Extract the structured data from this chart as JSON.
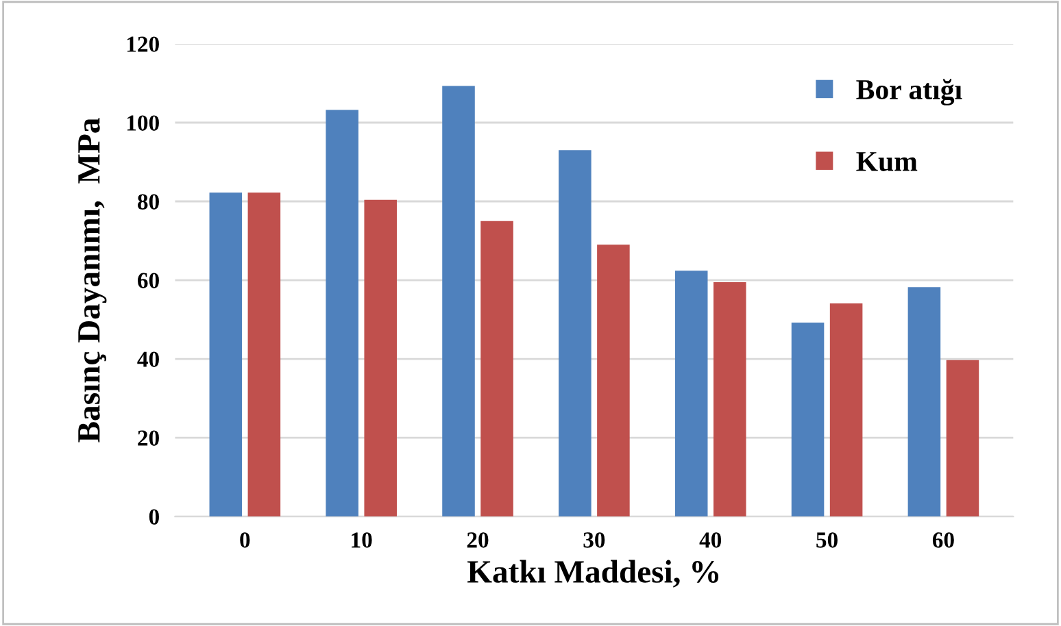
{
  "chart_data": {
    "type": "bar",
    "xlabel": "Katkı Maddesi, %",
    "ylabel": "Basınç Dayanımı,  MPa",
    "categories": [
      "0",
      "10",
      "20",
      "30",
      "40",
      "50",
      "60"
    ],
    "series": [
      {
        "name": "Bor atığı",
        "color": "#4f81bd",
        "values": [
          82.2,
          103.2,
          109.3,
          93.0,
          62.4,
          49.2,
          58.2
        ]
      },
      {
        "name": "Kum",
        "color": "#c0504d",
        "values": [
          82.2,
          80.4,
          75.0,
          69.0,
          59.5,
          54.1,
          39.7
        ]
      }
    ],
    "ylim": [
      0,
      120
    ],
    "yticks": [
      0,
      20,
      40,
      60,
      80,
      100,
      120
    ],
    "grid": "y",
    "legend": "top right"
  }
}
